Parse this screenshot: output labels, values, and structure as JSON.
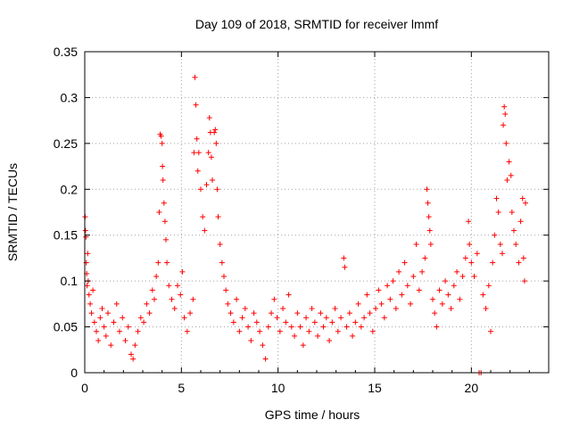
{
  "chart_data": {
    "type": "scatter",
    "title": "Day 109 of 2018, SRMTID for receiver lmmf",
    "xlabel": "GPS time / hours",
    "ylabel": "SRMTID / TECUs",
    "xlim": [
      0,
      24
    ],
    "ylim": [
      0,
      0.35
    ],
    "x_ticks": [
      0,
      5,
      10,
      15,
      20
    ],
    "x_tick_labels": [
      "0",
      "5",
      "10",
      "15",
      "20"
    ],
    "y_ticks": [
      0,
      0.05,
      0.1,
      0.15,
      0.2,
      0.25,
      0.3,
      0.35
    ],
    "y_tick_labels": [
      "0",
      "0.05",
      "0.1",
      "0.15",
      "0.2",
      "0.25",
      "0.3",
      "0.35"
    ],
    "grid": true,
    "marker": "+",
    "series": [
      {
        "name": "SRMTID",
        "color": "#ff0000",
        "points": [
          [
            0.02,
            0.17
          ],
          [
            0.04,
            0.155
          ],
          [
            0.06,
            0.148
          ],
          [
            0.08,
            0.12
          ],
          [
            0.1,
            0.108
          ],
          [
            0.12,
            0.095
          ],
          [
            0.15,
            0.13
          ],
          [
            0.18,
            0.1
          ],
          [
            0.22,
            0.085
          ],
          [
            0.28,
            0.075
          ],
          [
            0.35,
            0.065
          ],
          [
            0.42,
            0.09
          ],
          [
            0.5,
            0.055
          ],
          [
            0.6,
            0.045
          ],
          [
            0.7,
            0.035
          ],
          [
            0.8,
            0.06
          ],
          [
            0.9,
            0.07
          ],
          [
            1.0,
            0.05
          ],
          [
            1.1,
            0.04
          ],
          [
            1.2,
            0.065
          ],
          [
            1.35,
            0.03
          ],
          [
            1.5,
            0.055
          ],
          [
            1.65,
            0.075
          ],
          [
            1.8,
            0.045
          ],
          [
            1.95,
            0.06
          ],
          [
            2.1,
            0.035
          ],
          [
            2.25,
            0.05
          ],
          [
            2.4,
            0.02
          ],
          [
            2.5,
            0.015
          ],
          [
            2.6,
            0.03
          ],
          [
            2.75,
            0.045
          ],
          [
            2.9,
            0.06
          ],
          [
            3.05,
            0.055
          ],
          [
            3.2,
            0.075
          ],
          [
            3.35,
            0.065
          ],
          [
            3.5,
            0.09
          ],
          [
            3.6,
            0.08
          ],
          [
            3.7,
            0.105
          ],
          [
            3.8,
            0.12
          ],
          [
            3.85,
            0.175
          ],
          [
            3.9,
            0.26
          ],
          [
            3.95,
            0.258
          ],
          [
            4.0,
            0.25
          ],
          [
            4.02,
            0.225
          ],
          [
            4.05,
            0.21
          ],
          [
            4.1,
            0.185
          ],
          [
            4.15,
            0.165
          ],
          [
            4.2,
            0.145
          ],
          [
            4.25,
            0.12
          ],
          [
            4.35,
            0.095
          ],
          [
            4.5,
            0.08
          ],
          [
            4.65,
            0.07
          ],
          [
            4.8,
            0.095
          ],
          [
            4.95,
            0.085
          ],
          [
            5.05,
            0.11
          ],
          [
            5.15,
            0.06
          ],
          [
            5.3,
            0.045
          ],
          [
            5.45,
            0.065
          ],
          [
            5.6,
            0.08
          ],
          [
            5.65,
            0.24
          ],
          [
            5.7,
            0.322
          ],
          [
            5.75,
            0.292
          ],
          [
            5.8,
            0.255
          ],
          [
            5.85,
            0.22
          ],
          [
            5.9,
            0.24
          ],
          [
            6.0,
            0.2
          ],
          [
            6.1,
            0.17
          ],
          [
            6.2,
            0.155
          ],
          [
            6.3,
            0.205
          ],
          [
            6.4,
            0.24
          ],
          [
            6.45,
            0.278
          ],
          [
            6.5,
            0.262
          ],
          [
            6.55,
            0.235
          ],
          [
            6.6,
            0.21
          ],
          [
            6.7,
            0.262
          ],
          [
            6.75,
            0.265
          ],
          [
            6.8,
            0.25
          ],
          [
            6.85,
            0.2
          ],
          [
            6.9,
            0.17
          ],
          [
            7.0,
            0.14
          ],
          [
            7.1,
            0.12
          ],
          [
            7.2,
            0.105
          ],
          [
            7.3,
            0.09
          ],
          [
            7.4,
            0.075
          ],
          [
            7.55,
            0.065
          ],
          [
            7.7,
            0.055
          ],
          [
            7.85,
            0.08
          ],
          [
            8.0,
            0.045
          ],
          [
            8.15,
            0.06
          ],
          [
            8.3,
            0.07
          ],
          [
            8.45,
            0.05
          ],
          [
            8.6,
            0.035
          ],
          [
            8.75,
            0.065
          ],
          [
            8.9,
            0.055
          ],
          [
            9.05,
            0.045
          ],
          [
            9.2,
            0.03
          ],
          [
            9.35,
            0.015
          ],
          [
            9.5,
            0.05
          ],
          [
            9.65,
            0.065
          ],
          [
            9.8,
            0.08
          ],
          [
            9.95,
            0.06
          ],
          [
            10.1,
            0.045
          ],
          [
            10.25,
            0.07
          ],
          [
            10.4,
            0.055
          ],
          [
            10.55,
            0.085
          ],
          [
            10.7,
            0.05
          ],
          [
            10.85,
            0.04
          ],
          [
            11.0,
            0.065
          ],
          [
            11.15,
            0.05
          ],
          [
            11.3,
            0.03
          ],
          [
            11.45,
            0.06
          ],
          [
            11.6,
            0.045
          ],
          [
            11.75,
            0.07
          ],
          [
            11.9,
            0.055
          ],
          [
            12.05,
            0.04
          ],
          [
            12.2,
            0.065
          ],
          [
            12.35,
            0.05
          ],
          [
            12.5,
            0.06
          ],
          [
            12.65,
            0.035
          ],
          [
            12.8,
            0.055
          ],
          [
            12.95,
            0.07
          ],
          [
            13.1,
            0.045
          ],
          [
            13.25,
            0.06
          ],
          [
            13.4,
            0.125
          ],
          [
            13.45,
            0.115
          ],
          [
            13.55,
            0.05
          ],
          [
            13.7,
            0.065
          ],
          [
            13.85,
            0.04
          ],
          [
            14.0,
            0.055
          ],
          [
            14.15,
            0.075
          ],
          [
            14.3,
            0.05
          ],
          [
            14.45,
            0.06
          ],
          [
            14.6,
            0.085
          ],
          [
            14.75,
            0.065
          ],
          [
            14.9,
            0.045
          ],
          [
            15.05,
            0.07
          ],
          [
            15.2,
            0.09
          ],
          [
            15.35,
            0.075
          ],
          [
            15.5,
            0.06
          ],
          [
            15.65,
            0.095
          ],
          [
            15.8,
            0.08
          ],
          [
            15.95,
            0.1
          ],
          [
            16.1,
            0.07
          ],
          [
            16.25,
            0.11
          ],
          [
            16.4,
            0.085
          ],
          [
            16.55,
            0.12
          ],
          [
            16.7,
            0.095
          ],
          [
            16.85,
            0.075
          ],
          [
            17.0,
            0.105
          ],
          [
            17.15,
            0.14
          ],
          [
            17.3,
            0.09
          ],
          [
            17.45,
            0.11
          ],
          [
            17.6,
            0.125
          ],
          [
            17.7,
            0.2
          ],
          [
            17.75,
            0.185
          ],
          [
            17.8,
            0.17
          ],
          [
            17.85,
            0.155
          ],
          [
            17.9,
            0.14
          ],
          [
            18.0,
            0.08
          ],
          [
            18.1,
            0.065
          ],
          [
            18.2,
            0.05
          ],
          [
            18.35,
            0.09
          ],
          [
            18.5,
            0.075
          ],
          [
            18.65,
            0.1
          ],
          [
            18.8,
            0.085
          ],
          [
            18.95,
            0.07
          ],
          [
            19.1,
            0.095
          ],
          [
            19.25,
            0.11
          ],
          [
            19.4,
            0.08
          ],
          [
            19.55,
            0.105
          ],
          [
            19.7,
            0.125
          ],
          [
            19.85,
            0.165
          ],
          [
            19.9,
            0.14
          ],
          [
            20.0,
            0.12
          ],
          [
            20.15,
            0.105
          ],
          [
            20.3,
            0.13
          ],
          [
            20.4,
            0.0
          ],
          [
            20.5,
            0.0
          ],
          [
            20.6,
            0.085
          ],
          [
            20.75,
            0.07
          ],
          [
            20.9,
            0.095
          ],
          [
            21.0,
            0.045
          ],
          [
            21.1,
            0.12
          ],
          [
            21.2,
            0.15
          ],
          [
            21.3,
            0.19
          ],
          [
            21.4,
            0.175
          ],
          [
            21.5,
            0.14
          ],
          [
            21.6,
            0.13
          ],
          [
            21.65,
            0.27
          ],
          [
            21.7,
            0.29
          ],
          [
            21.75,
            0.282
          ],
          [
            21.8,
            0.25
          ],
          [
            21.85,
            0.21
          ],
          [
            21.95,
            0.23
          ],
          [
            22.05,
            0.215
          ],
          [
            22.1,
            0.175
          ],
          [
            22.2,
            0.155
          ],
          [
            22.3,
            0.14
          ],
          [
            22.45,
            0.12
          ],
          [
            22.55,
            0.165
          ],
          [
            22.65,
            0.19
          ],
          [
            22.7,
            0.125
          ],
          [
            22.75,
            0.1
          ],
          [
            22.8,
            0.185
          ]
        ]
      }
    ]
  }
}
